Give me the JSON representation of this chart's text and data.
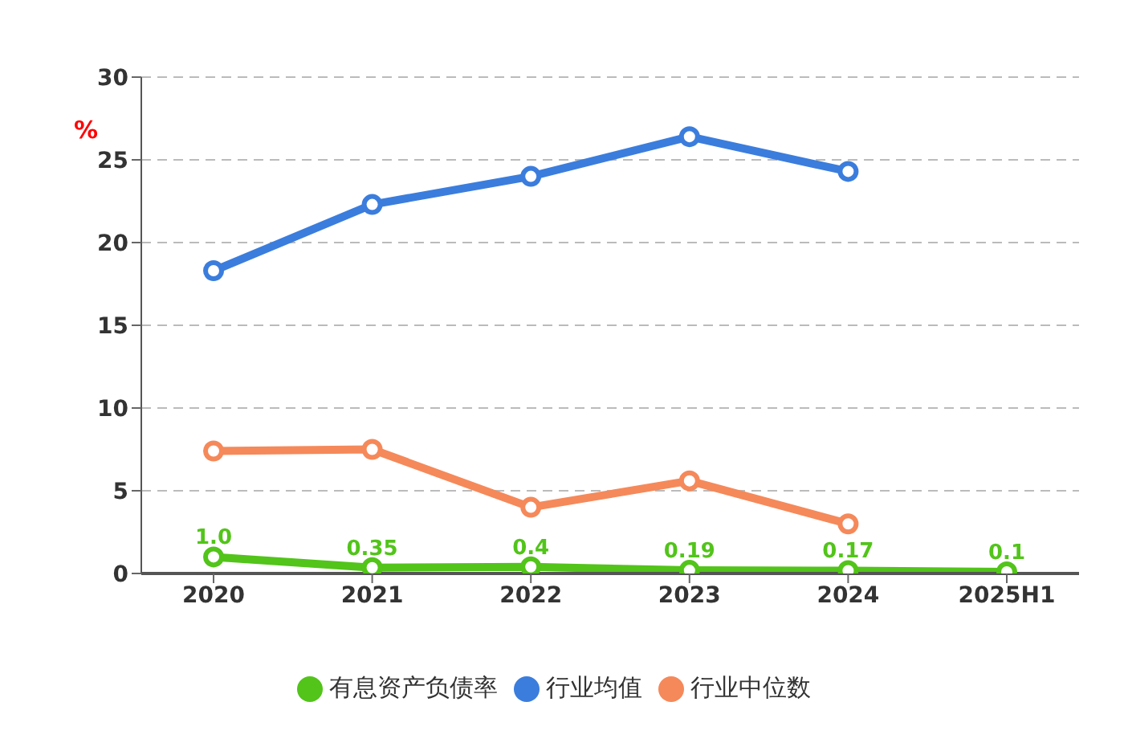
{
  "chart_data": {
    "type": "line",
    "ylabel": "%",
    "categories": [
      "2020",
      "2021",
      "2022",
      "2023",
      "2024",
      "2025H1"
    ],
    "series": [
      {
        "name": "有息资产负债率",
        "color": "#52c41a",
        "values": [
          1.0,
          0.35,
          0.4,
          0.19,
          0.17,
          0.1
        ],
        "value_labels": [
          "1.0",
          "0.35",
          "0.4",
          "0.19",
          "0.17",
          "0.1"
        ]
      },
      {
        "name": "行业均值",
        "color": "#3b7ddd",
        "values": [
          18.3,
          22.3,
          24.0,
          26.4,
          24.3,
          null
        ]
      },
      {
        "name": "行业中位数",
        "color": "#f5895a",
        "values": [
          7.4,
          7.5,
          4.0,
          5.6,
          3.0,
          null
        ]
      }
    ],
    "ylim": [
      0,
      30
    ],
    "yticks": [
      0,
      5,
      10,
      15,
      20,
      25,
      30
    ],
    "grid": "y",
    "legend": "bottom",
    "marker": "circle",
    "line_style": "solid"
  }
}
